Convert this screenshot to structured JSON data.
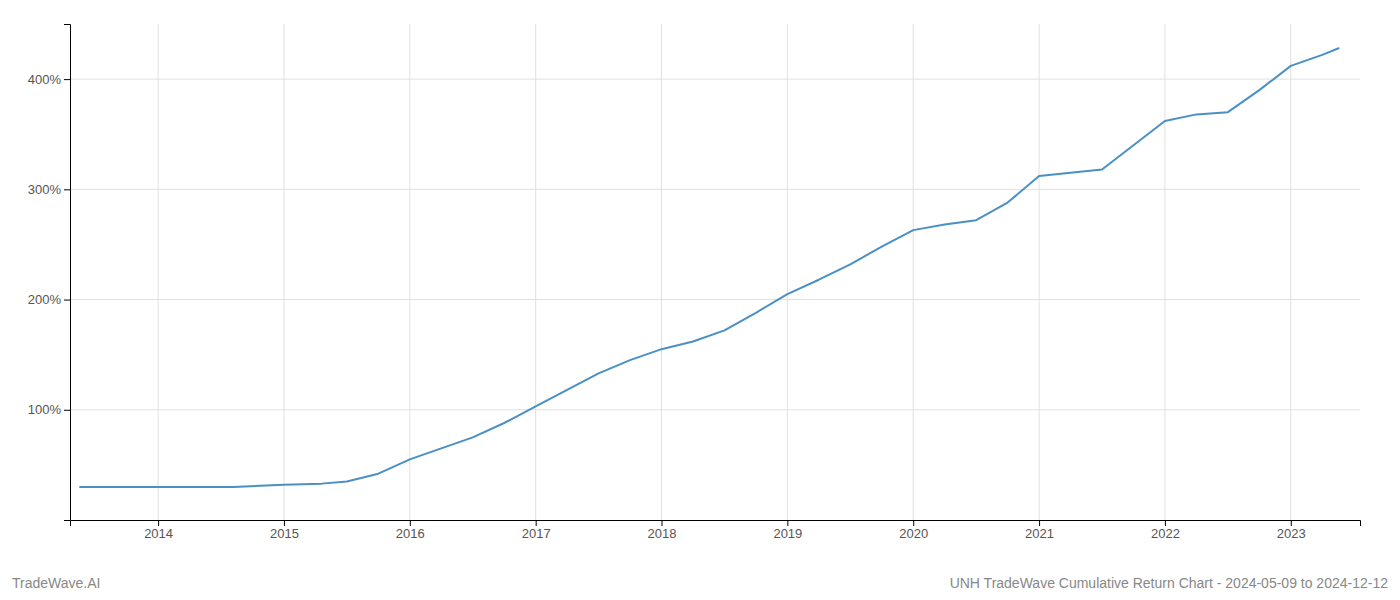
{
  "chart_data": {
    "type": "line",
    "title": "UNH TradeWave Cumulative Return Chart - 2024-05-09 to 2024-12-12",
    "annotations": [
      "TradeWave.AI"
    ],
    "x": [
      2013.38,
      2013.5,
      2013.7,
      2014.0,
      2014.3,
      2014.6,
      2015.0,
      2015.3,
      2015.5,
      2015.75,
      2016.0,
      2016.25,
      2016.5,
      2016.75,
      2017.0,
      2017.25,
      2017.5,
      2017.75,
      2018.0,
      2018.25,
      2018.5,
      2018.75,
      2019.0,
      2019.25,
      2019.5,
      2019.75,
      2020.0,
      2020.25,
      2020.5,
      2020.75,
      2021.0,
      2021.25,
      2021.5,
      2021.75,
      2022.0,
      2022.25,
      2022.5,
      2022.75,
      2023.0,
      2023.25,
      2023.38
    ],
    "values": [
      30,
      30,
      30,
      30,
      30,
      30,
      32,
      33,
      35,
      42,
      55,
      65,
      75,
      88,
      103,
      118,
      133,
      145,
      155,
      162,
      172,
      188,
      205,
      218,
      232,
      248,
      263,
      268,
      272,
      288,
      312,
      315,
      318,
      340,
      362,
      368,
      370,
      390,
      412,
      422,
      428
    ],
    "color": "#4a90c4",
    "xlim": [
      2013.3,
      2023.55
    ],
    "xticks": [
      2014,
      2015,
      2016,
      2017,
      2018,
      2019,
      2020,
      2021,
      2022,
      2023
    ],
    "ylim": [
      0,
      450
    ],
    "yticks": [
      {
        "value": 100,
        "label": "100%"
      },
      {
        "value": 200,
        "label": "200%"
      },
      {
        "value": 300,
        "label": "300%"
      },
      {
        "value": 400,
        "label": "400%"
      }
    ],
    "grid": true
  }
}
